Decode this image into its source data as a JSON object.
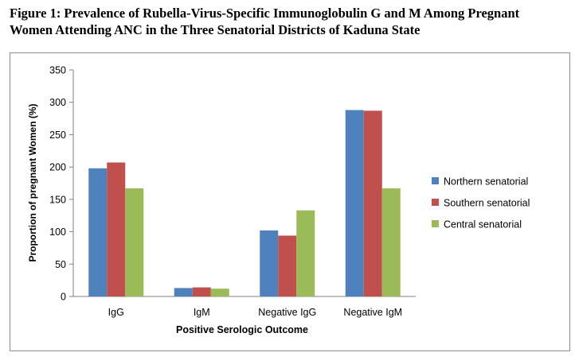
{
  "figure": {
    "title_line1": "Figure 1: Prevalence of Rubella-Virus-Specific Immunoglobulin G and M Among Pregnant",
    "title_line2": "Women Attending ANC in the Three Senatorial Districts of Kaduna State"
  },
  "chart_data": {
    "type": "bar",
    "title": "",
    "xlabel": "Positive Serologic Outcome",
    "ylabel": "Proportion of pregnant Women (%)",
    "categories": [
      "IgG",
      "IgM",
      "Negative IgG",
      "Negative IgM"
    ],
    "ylim": [
      0,
      350
    ],
    "yticks": [
      0,
      50,
      100,
      150,
      200,
      250,
      300,
      350
    ],
    "grid": false,
    "legend_position": "right",
    "series": [
      {
        "name": "Northern senatorial",
        "color": "#4f81bd",
        "values": [
          198,
          13,
          102,
          288
        ]
      },
      {
        "name": "Southern senatorial",
        "color": "#c0504d",
        "values": [
          207,
          14,
          94,
          287
        ]
      },
      {
        "name": "Central senatorial",
        "color": "#9bbb59",
        "values": [
          167,
          12,
          133,
          167
        ]
      }
    ]
  }
}
